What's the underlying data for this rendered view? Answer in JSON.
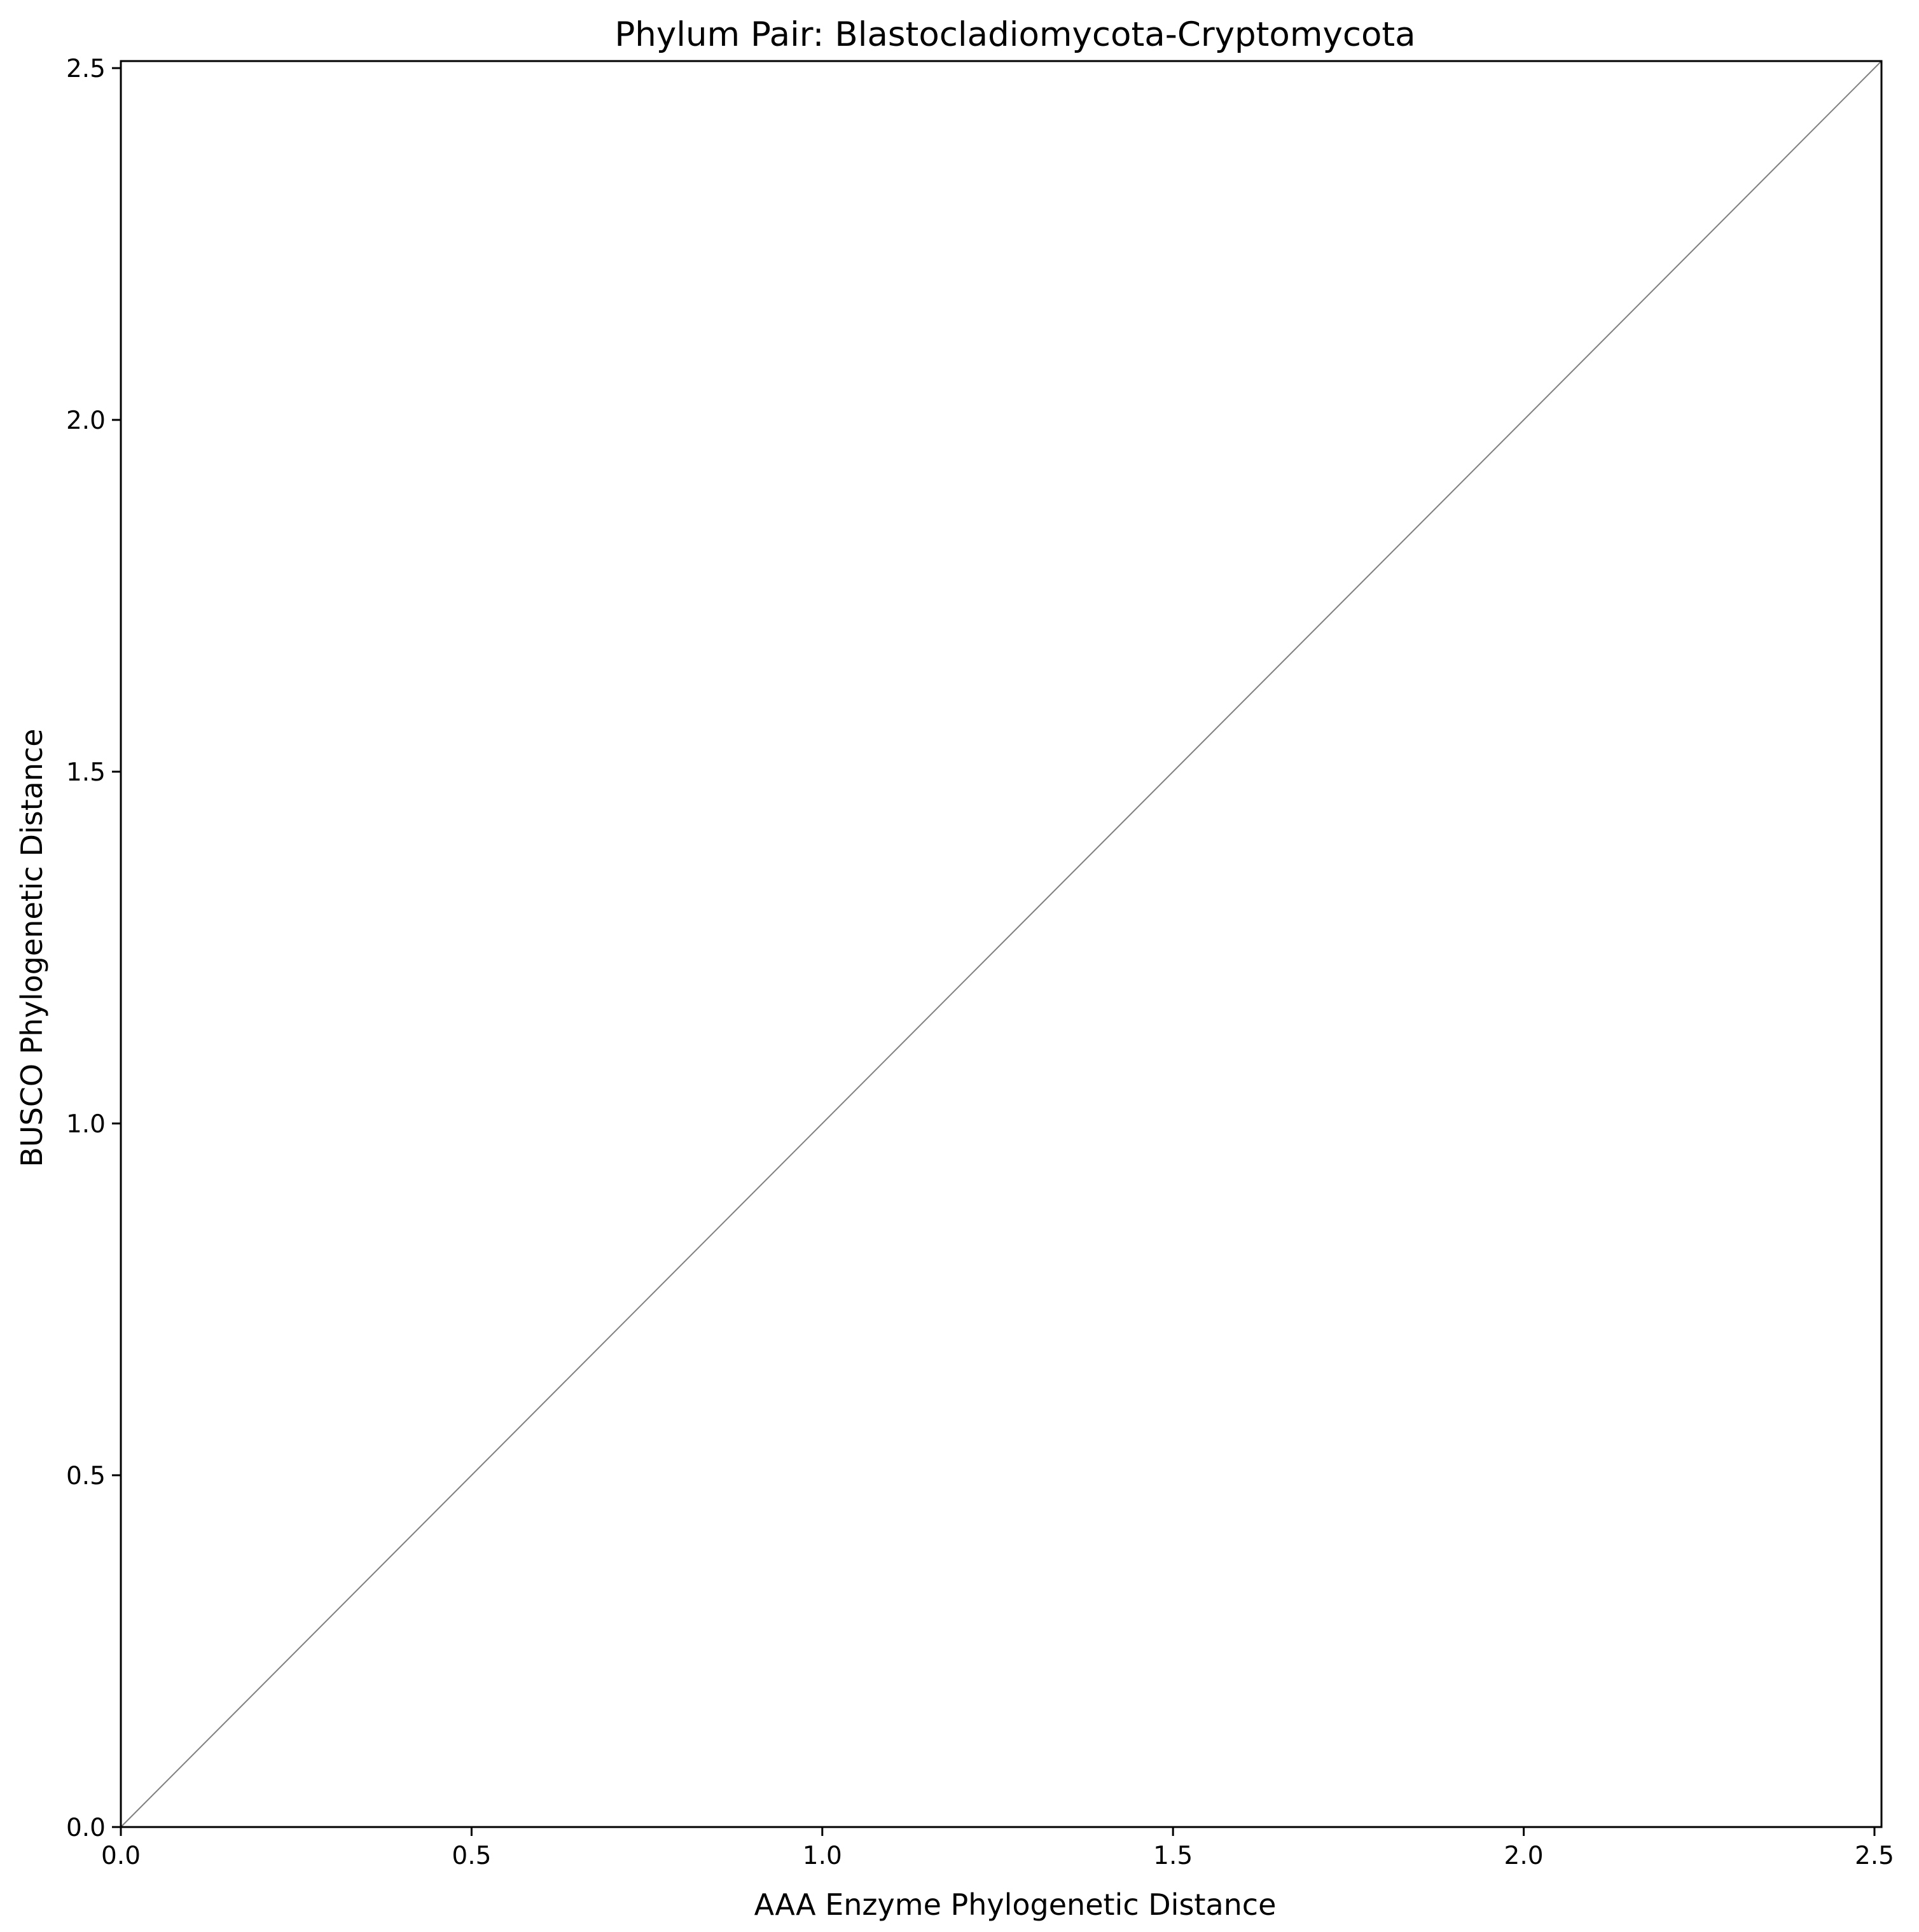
{
  "chart_data": {
    "type": "scatter",
    "title": "Phylum Pair: Blastocladiomycota-Cryptomycota",
    "xlabel": "AAA Enzyme Phylogenetic Distance",
    "ylabel": "BUSCO Phylogenetic Distance",
    "xlim": [
      0.0,
      2.51
    ],
    "ylim": [
      0.0,
      2.51
    ],
    "xticks": [
      0.0,
      0.5,
      1.0,
      1.5,
      2.0,
      2.5
    ],
    "yticks": [
      0.0,
      0.5,
      1.0,
      1.5,
      2.0,
      2.5
    ],
    "xtick_labels": [
      "0.0",
      "0.5",
      "1.0",
      "1.5",
      "2.0",
      "2.5"
    ],
    "ytick_labels": [
      "0.0",
      "0.5",
      "1.0",
      "1.5",
      "2.0",
      "2.5"
    ],
    "grid": false,
    "series": [],
    "reference_line": {
      "x": [
        0.0,
        2.51
      ],
      "y": [
        0.0,
        2.51
      ],
      "color": "#808080"
    },
    "axis_color": "#000000"
  }
}
